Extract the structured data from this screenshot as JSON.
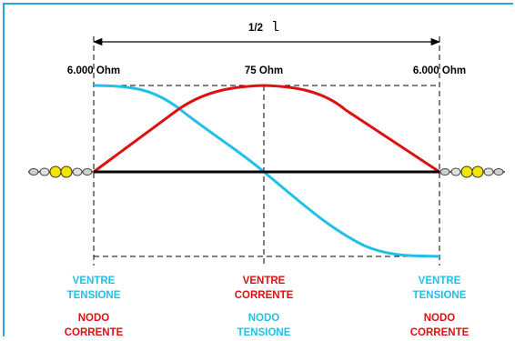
{
  "title": {
    "prefix": "1/2",
    "symbol": "l"
  },
  "impedance": {
    "left": "6.000 Ohm",
    "center": "75 Ohm",
    "right": "6.000 Ohm"
  },
  "bottom": {
    "left": {
      "top1": "VENTRE",
      "top2": "TENSIONE",
      "bot1": "NODO",
      "bot2": "CORRENTE"
    },
    "center": {
      "top1": "VENTRE",
      "top2": "CORRENTE",
      "bot1": "NODO",
      "bot2": "TENSIONE"
    },
    "right": {
      "top1": "VENTRE",
      "top2": "TENSIONE",
      "bot1": "NODO",
      "bot2": "CORRENTE"
    }
  },
  "colors": {
    "frame": "#2aa8dd",
    "voltage": "#22bfe8",
    "current": "#dd1111",
    "insulator": "#f2e600",
    "axis": "#000000"
  },
  "icons": {
    "insulator_left": "insulator-chain-icon",
    "insulator_right": "insulator-chain-icon"
  }
}
